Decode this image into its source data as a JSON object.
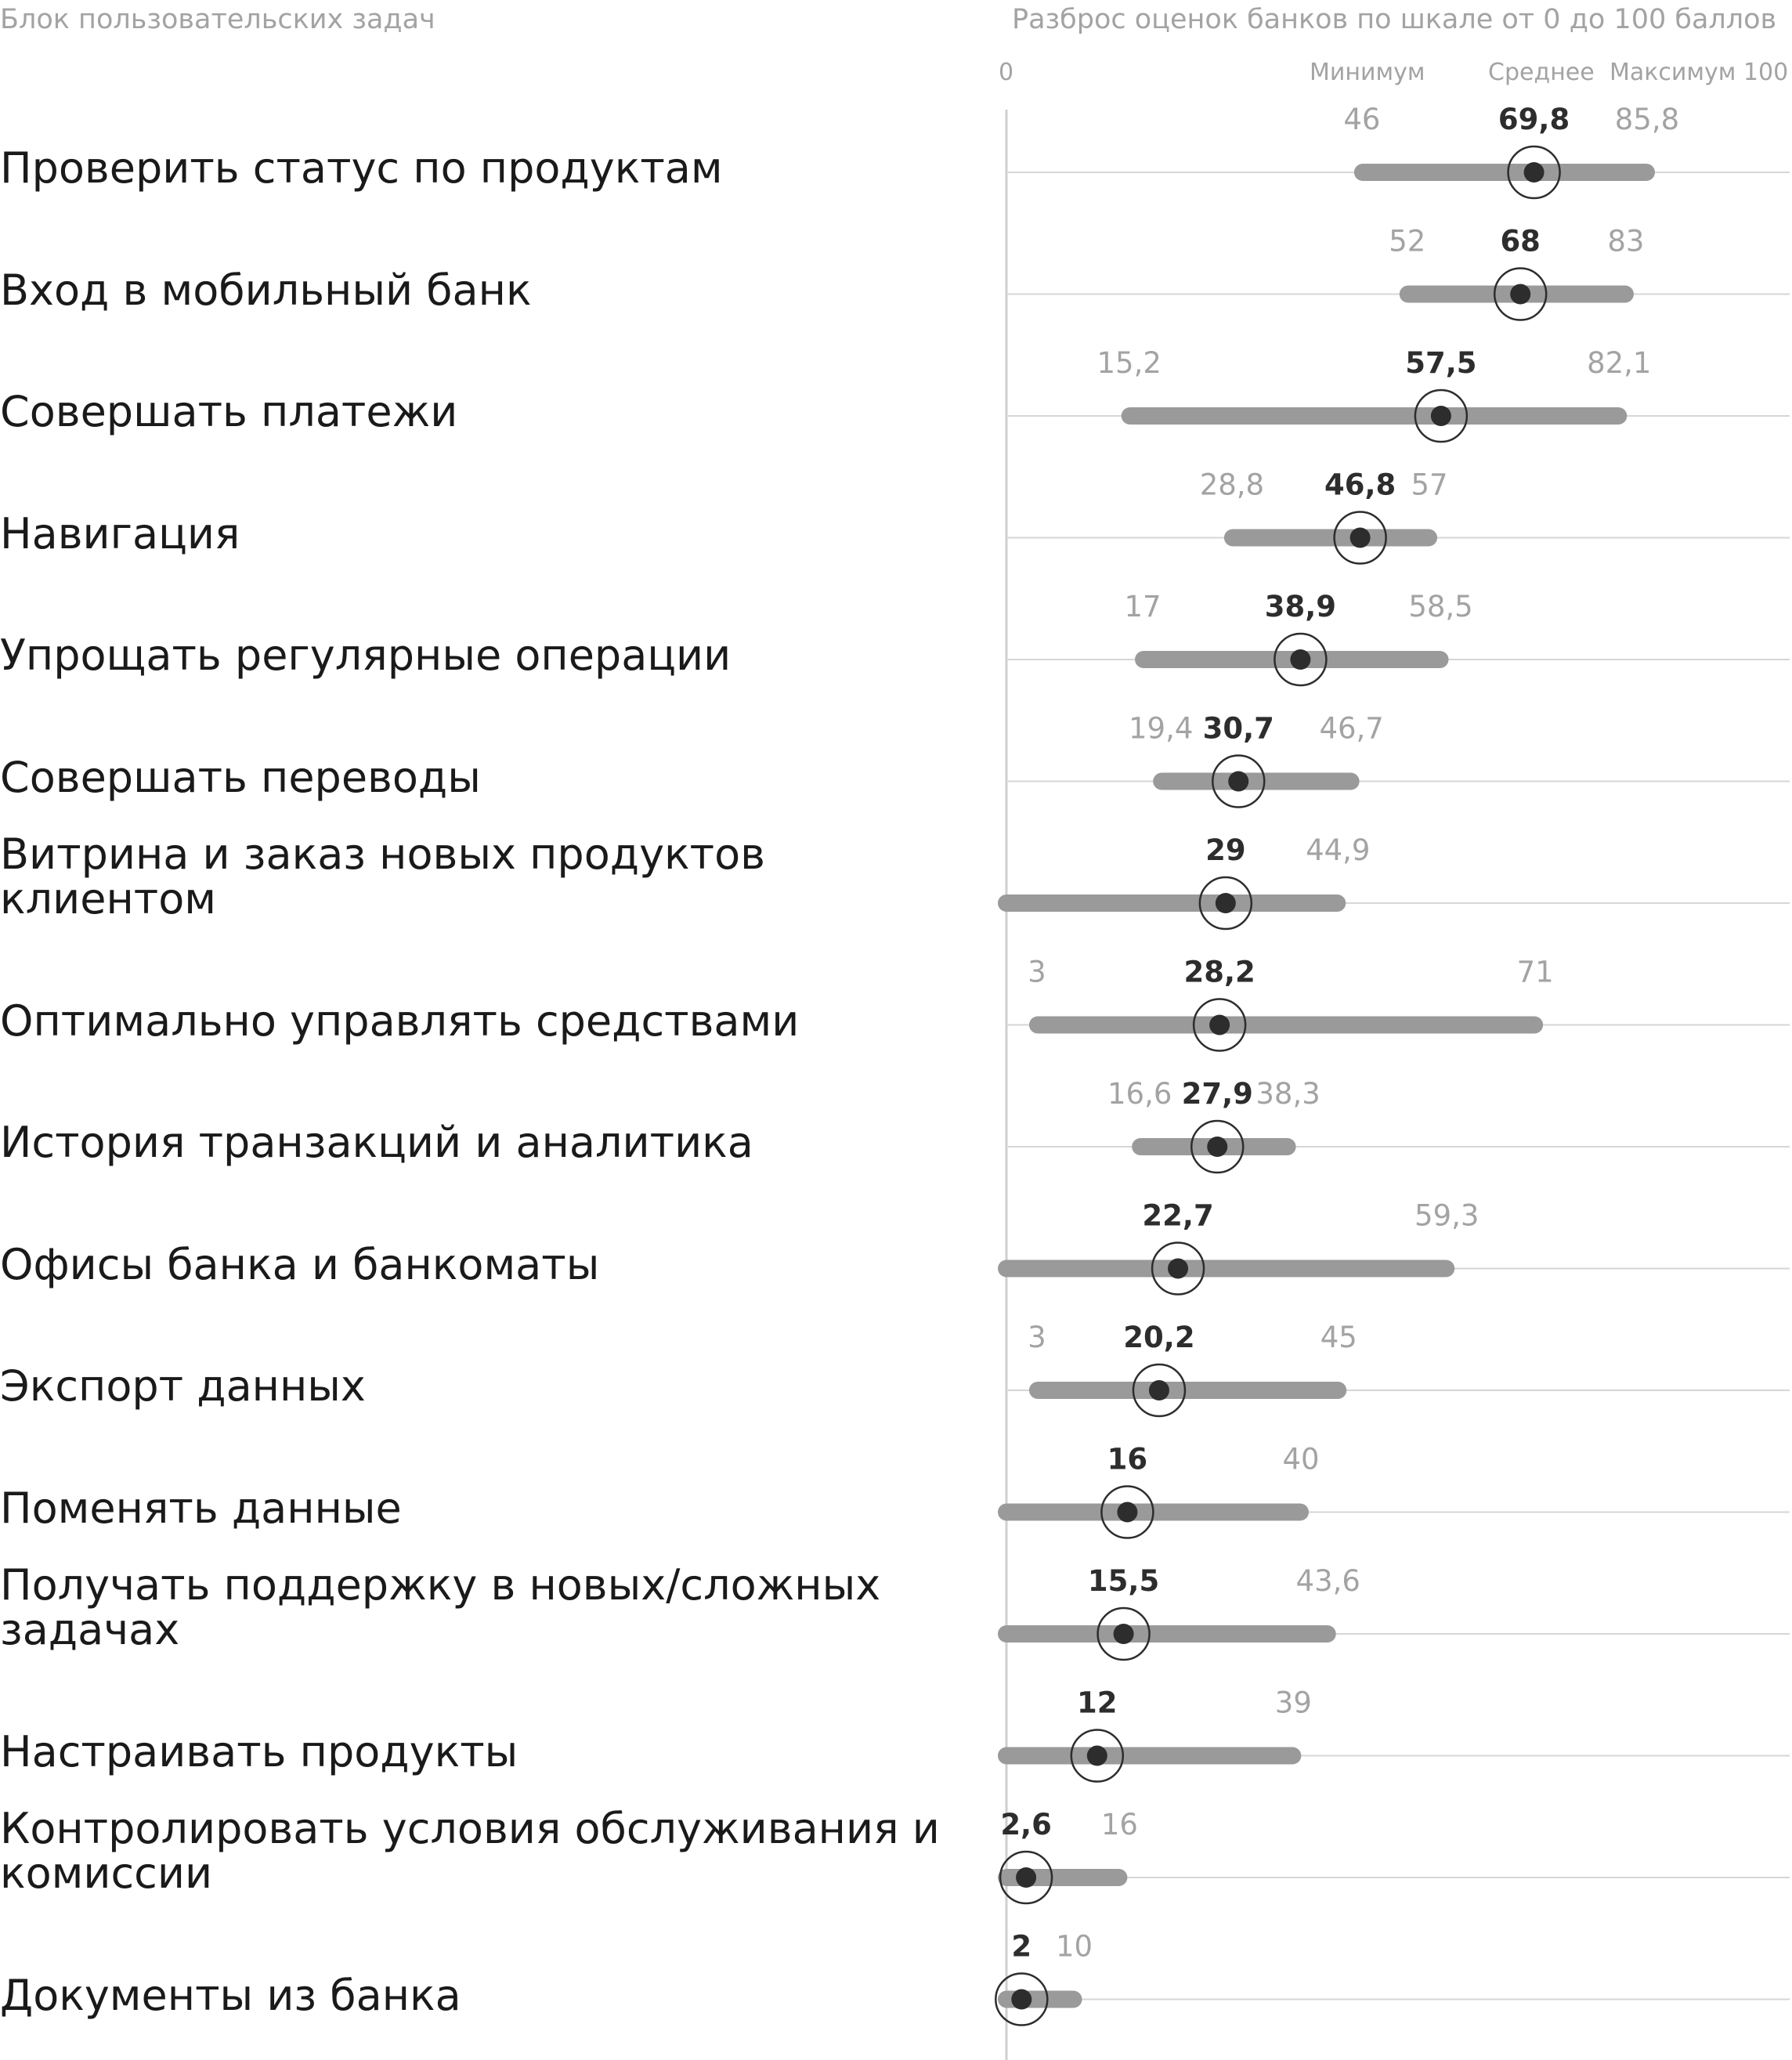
{
  "header": {
    "left": "Блок пользовательских задач",
    "right": "Разброс оценок банков по шкале от 0 до 100 баллов"
  },
  "legend": {
    "zero": "0",
    "min": "Минимум",
    "mean": "Среднее",
    "max": "Максимум 100"
  },
  "colors": {
    "range_bar": "#9a9a9a",
    "mean_dot": "#2d2d2d",
    "ring": "#2d2d2d",
    "min_max_text": "#a3a3a3",
    "mean_text": "#2d2d2d",
    "gridline": "#d6d6d6",
    "axis": "#cfcfcf"
  },
  "chart_data": {
    "type": "range-dot",
    "xlim": [
      0,
      100
    ],
    "rows": [
      {
        "label": "Проверить статус по продуктам",
        "min": 46,
        "mean": 69.8,
        "max": 85.8,
        "min_label": "46",
        "mean_label": "69,8",
        "max_label": "85,8"
      },
      {
        "label": "Вход в мобильный банк",
        "min": 52,
        "mean": 68,
        "max": 83,
        "min_label": "52",
        "mean_label": "68",
        "max_label": "83"
      },
      {
        "label": "Совершать платежи",
        "min": 15.2,
        "mean": 57.5,
        "max": 82.1,
        "min_label": "15,2",
        "mean_label": "57,5",
        "max_label": "82,1"
      },
      {
        "label": "Навигация",
        "min": 28.8,
        "mean": 46.8,
        "max": 57,
        "min_label": "28,8",
        "mean_label": "46,8",
        "max_label": "57"
      },
      {
        "label": "Упрощать регулярные операции",
        "min": 17,
        "mean": 38.9,
        "max": 58.5,
        "min_label": "17",
        "mean_label": "38,9",
        "max_label": "58,5"
      },
      {
        "label": "Совершать переводы",
        "min": 19.4,
        "mean": 30.7,
        "max": 46.7,
        "min_label": "19,4",
        "mean_label": "30,7",
        "max_label": "46,7"
      },
      {
        "label": "Витрина и заказ новых продуктов клиентом",
        "min": 0,
        "mean": 29,
        "max": 44.9,
        "min_label": "",
        "mean_label": "29",
        "max_label": "44,9"
      },
      {
        "label": "Оптимально управлять средствами",
        "min": 3,
        "mean": 28.2,
        "max": 71,
        "min_label": "3",
        "mean_label": "28,2",
        "max_label": "71"
      },
      {
        "label": "История транзакций и аналитика",
        "min": 16.6,
        "mean": 27.9,
        "max": 38.3,
        "min_label": "16,6",
        "mean_label": "27,9",
        "max_label": "38,3"
      },
      {
        "label": "Офисы банка и банкоматы",
        "min": 0,
        "mean": 22.7,
        "max": 59.3,
        "min_label": "",
        "mean_label": "22,7",
        "max_label": "59,3"
      },
      {
        "label": "Экспорт данных",
        "min": 3,
        "mean": 20.2,
        "max": 45,
        "min_label": "3",
        "mean_label": "20,2",
        "max_label": "45"
      },
      {
        "label": "Поменять данные",
        "min": 0,
        "mean": 16,
        "max": 40,
        "min_label": "",
        "mean_label": "16",
        "max_label": "40"
      },
      {
        "label": "Получать поддержку в новых/сложных задачах",
        "min": 0,
        "mean": 15.5,
        "max": 43.6,
        "min_label": "",
        "mean_label": "15,5",
        "max_label": "43,6"
      },
      {
        "label": "Настраивать продукты",
        "min": 0,
        "mean": 12,
        "max": 39,
        "min_label": "",
        "mean_label": "12",
        "max_label": "39"
      },
      {
        "label": "Контролировать условия обслуживания и комиссии",
        "min": 0,
        "mean": 2.6,
        "max": 16,
        "min_label": "",
        "mean_label": "2,6",
        "max_label": "16"
      },
      {
        "label": "Документы из банка",
        "min": 0,
        "mean": 2,
        "max": 10,
        "min_label": "",
        "mean_label": "2",
        "max_label": "10"
      }
    ]
  }
}
